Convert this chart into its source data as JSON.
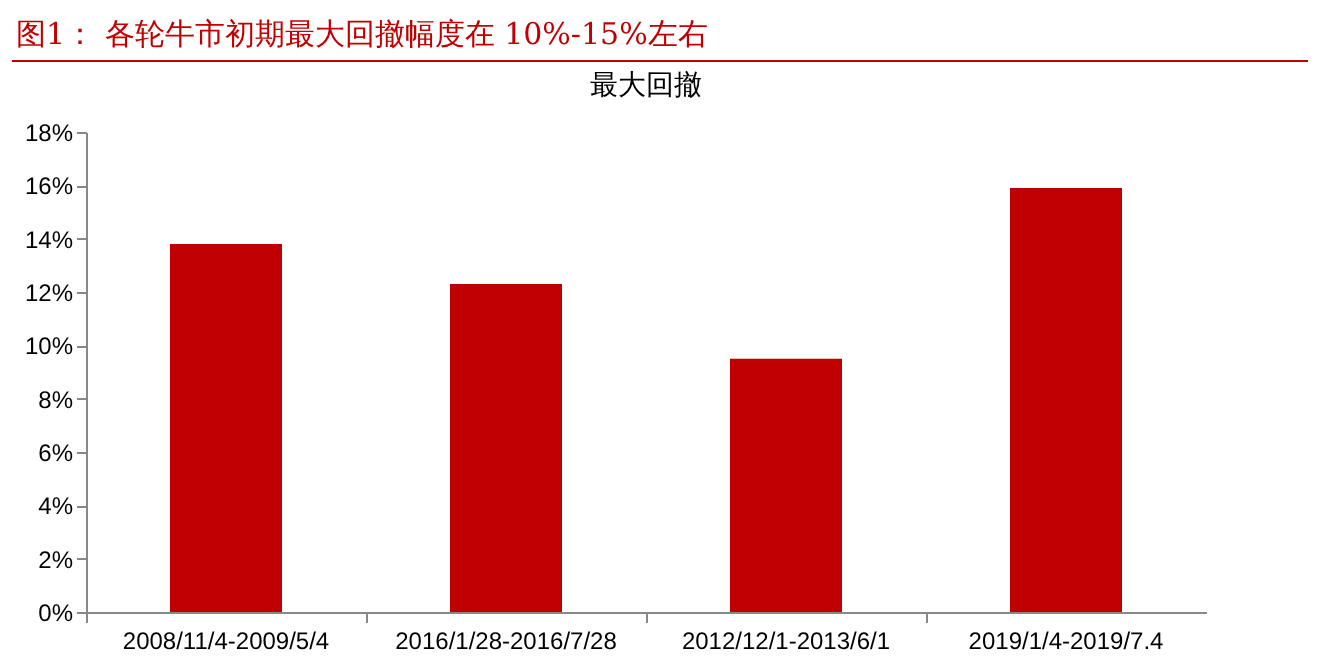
{
  "chart_data": {
    "type": "bar",
    "title": "图1：  各轮牛市初期最大回撤幅度在 10%-15%左右",
    "subtitle": "最大回撤",
    "categories": [
      "2008/11/4-2009/5/4",
      "2016/1/28-2016/7/28",
      "2012/12/1-2013/6/1",
      "2019/1/4-2019/7.4"
    ],
    "values": [
      13.8,
      12.3,
      9.5,
      15.9
    ],
    "color": "#c00000",
    "ylim": [
      0,
      18
    ],
    "yticks": [
      {
        "value": 0,
        "label": "0%"
      },
      {
        "value": 2,
        "label": "2%"
      },
      {
        "value": 4,
        "label": "4%"
      },
      {
        "value": 6,
        "label": "6%"
      },
      {
        "value": 8,
        "label": "8%"
      },
      {
        "value": 10,
        "label": "10%"
      },
      {
        "value": 12,
        "label": "12%"
      },
      {
        "value": 14,
        "label": "14%"
      },
      {
        "value": 16,
        "label": "16%"
      },
      {
        "value": 18,
        "label": "18%"
      }
    ],
    "grid": false
  }
}
